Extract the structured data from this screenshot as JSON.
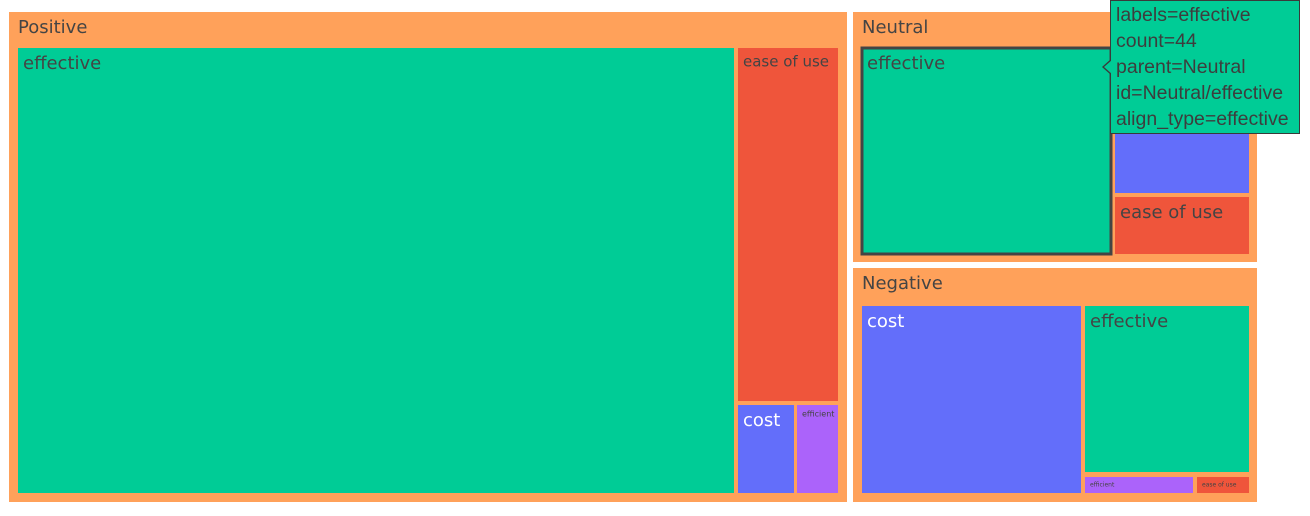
{
  "chart_data": {
    "type": "treemap",
    "title": "",
    "colors": {
      "parent": "#ffa15a",
      "effective": "#00cc96",
      "ease of use": "#ef553b",
      "cost": "#636efa",
      "efficient": "#ab63fa"
    },
    "groups": [
      {
        "name": "Positive",
        "children": [
          {
            "label": "effective",
            "count": 185
          },
          {
            "label": "ease of use",
            "count": 24
          },
          {
            "label": "cost",
            "count": 3
          },
          {
            "label": "efficient",
            "count": 3
          }
        ]
      },
      {
        "name": "Neutral",
        "children": [
          {
            "label": "effective",
            "count": 44
          },
          {
            "label": "cost",
            "count": 12
          },
          {
            "label": "ease of use",
            "count": 5
          }
        ]
      },
      {
        "name": "Negative",
        "children": [
          {
            "label": "cost",
            "count": 30
          },
          {
            "label": "effective",
            "count": 20
          },
          {
            "label": "efficient",
            "count": 2
          },
          {
            "label": "ease of use",
            "count": 1
          }
        ]
      }
    ]
  },
  "tooltip": {
    "lines": [
      "labels=effective",
      "count=44",
      "parent=Neutral",
      "id=Neutral/effective",
      "align_type=effective"
    ]
  }
}
